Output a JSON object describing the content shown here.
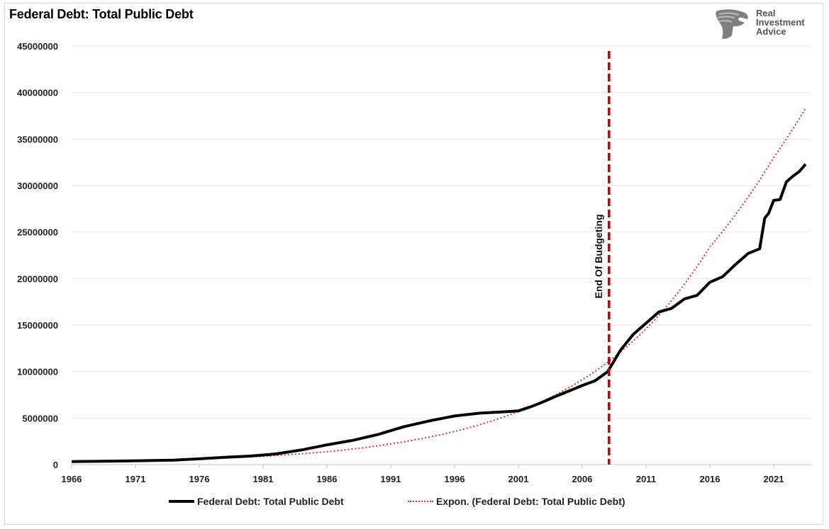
{
  "title": "Federal Debt: Total Public Debt",
  "logo": {
    "icon": "eagle-head-icon",
    "lines": [
      "Real",
      "Investment",
      "Advice"
    ]
  },
  "colors": {
    "debt_line": "#000000",
    "trend_line": "#e03030",
    "marker_line": "#c00000",
    "grid": "#e6e6e6"
  },
  "chart_data": {
    "type": "line",
    "title": "Federal Debt: Total Public Debt",
    "xlabel": "",
    "ylabel": "",
    "xlim": [
      1966,
      2024
    ],
    "ylim": [
      0,
      45000000
    ],
    "yticks": [
      0,
      5000000,
      10000000,
      15000000,
      20000000,
      25000000,
      30000000,
      35000000,
      40000000,
      45000000
    ],
    "xticks": [
      1966,
      1971,
      1976,
      1981,
      1986,
      1991,
      1996,
      2001,
      2006,
      2011,
      2016,
      2021
    ],
    "grid": true,
    "legend": "bottom",
    "series": [
      {
        "name": "Federal Debt: Total Public Debt",
        "style": "solid",
        "x": [
          1966,
          1968,
          1970,
          1972,
          1974,
          1976,
          1978,
          1980,
          1982,
          1984,
          1986,
          1988,
          1990,
          1992,
          1994,
          1996,
          1998,
          2000,
          2001,
          2002,
          2003,
          2004,
          2005,
          2006,
          2007,
          2008,
          2009,
          2010,
          2011,
          2012,
          2013,
          2014,
          2015,
          2016,
          2017,
          2018,
          2019,
          2019.9,
          2020.3,
          2020.6,
          2021,
          2021.5,
          2022,
          2022.5,
          2023,
          2023.5
        ],
        "y": [
          320000,
          350000,
          380000,
          430000,
          480000,
          620000,
          780000,
          910000,
          1140000,
          1570000,
          2120000,
          2600000,
          3230000,
          4060000,
          4690000,
          5220000,
          5530000,
          5680000,
          5770000,
          6230000,
          6780000,
          7380000,
          7930000,
          8500000,
          9000000,
          10000000,
          12300000,
          14000000,
          15200000,
          16400000,
          16800000,
          17800000,
          18200000,
          19600000,
          20200000,
          21500000,
          22700000,
          23200000,
          26500000,
          27000000,
          28400000,
          28500000,
          30400000,
          31000000,
          31500000,
          32300000
        ]
      },
      {
        "name": "Expon. (Federal Debt: Total Public Debt)",
        "style": "dotted",
        "type": "exponential-trend",
        "x": [
          1966,
          1971,
          1976,
          1981,
          1986,
          1991,
          1996,
          2001,
          2006,
          2011,
          2016,
          2021,
          2023.5
        ],
        "y": [
          290000,
          420000,
          610000,
          890000,
          1380000,
          2220000,
          3560000,
          5700000,
          9120000,
          14600000,
          23400000,
          33000000,
          38300000
        ]
      }
    ],
    "annotations": [
      {
        "type": "vline",
        "x": 2008.1,
        "label": "End Of Budgeting",
        "style": "dashed"
      }
    ]
  }
}
